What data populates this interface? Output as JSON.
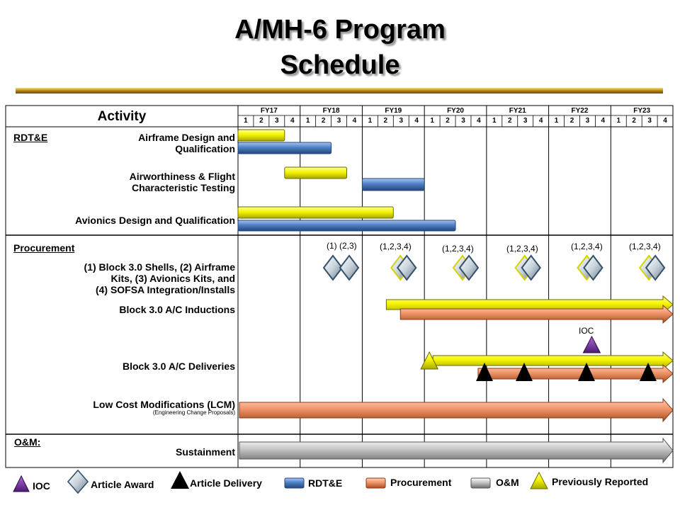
{
  "title": {
    "line1": "A/MH-6 Program",
    "line2": "Schedule"
  },
  "header": {
    "activity": "Activity",
    "fiscal_years": [
      "FY17",
      "FY18",
      "FY19",
      "FY20",
      "FY21",
      "FY22",
      "FY23"
    ],
    "quarters": [
      "1",
      "2",
      "3",
      "4"
    ]
  },
  "sections": {
    "rdte": "RDT&E",
    "procurement": "Procurement",
    "om": "O&M:"
  },
  "activities": {
    "airframe_l1": "Airframe Design and",
    "airframe_l2": "Qualification",
    "airworthiness_l1": "Airworthiness & Flight",
    "airworthiness_l2": "Characteristic Testing",
    "avionics": "Avionics Design and Qualification",
    "block_l1": "(1) Block 3.0 Shells, (2) Airframe",
    "block_l2": "Kits, (3) Avionics Kits, and",
    "block_l3": "(4) SOFSA Integration/Installs",
    "inductions": "Block 3.0 A/C Inductions",
    "deliveries": "Block 3.0 A/C Deliveries",
    "lcm": "Low Cost Modifications (LCM)",
    "lcm_sub": "(Engineering Change Proposals)",
    "sustainment": "Sustainment"
  },
  "award_labels": [
    "(1) (2,3)",
    "(1,2,3,4)",
    "(1,2,3,4)",
    "(1,2,3,4)",
    "(1,2,3,4)",
    "(1,2,3,4)"
  ],
  "ioc_label": "IOC",
  "legend": {
    "ioc": "IOC",
    "article_award": "Article Award",
    "article_delivery": "Article Delivery",
    "rdte": "RDT&E",
    "procurement": "Procurement",
    "om": "O&M",
    "previously_reported": "Previously Reported"
  },
  "colors": {
    "rdte": "#4f7fc4",
    "procurement": "#f0946a",
    "om": "#b9b9b9",
    "previously_reported": "#f5f500",
    "ioc": "#6a2a9a",
    "delivery": "#000000",
    "title_rule": "#c8961e"
  },
  "schedule": {
    "rdte_bars": [
      {
        "activity": "Airframe Design and Qualification",
        "type": "previously_reported",
        "start": "FY17 Q1",
        "end": "FY17 Q3"
      },
      {
        "activity": "Airframe Design and Qualification",
        "type": "rdte",
        "start": "FY17 Q1",
        "end": "FY18 Q2"
      },
      {
        "activity": "Airworthiness & Flight Characteristic Testing",
        "type": "previously_reported",
        "start": "FY17 Q4",
        "end": "FY18 Q3"
      },
      {
        "activity": "Airworthiness & Flight Characteristic Testing",
        "type": "rdte",
        "start": "FY19 Q1",
        "end": "FY19 Q4"
      },
      {
        "activity": "Avionics Design and Qualification",
        "type": "previously_reported",
        "start": "FY17 Q1",
        "end": "FY19 Q2"
      },
      {
        "activity": "Avionics Design and Qualification",
        "type": "rdte",
        "start": "FY17 Q1",
        "end": "FY20 Q2"
      }
    ],
    "procurement_bars": [
      {
        "activity": "Block 3.0 A/C Inductions",
        "type": "previously_reported",
        "start": "FY19 Q2",
        "end": "beyond FY23"
      },
      {
        "activity": "Block 3.0 A/C Inductions",
        "type": "procurement",
        "start": "FY19 Q3",
        "end": "beyond FY23"
      },
      {
        "activity": "Block 3.0 A/C Deliveries",
        "type": "previously_reported",
        "start": "FY20 Q1",
        "end": "beyond FY23"
      },
      {
        "activity": "Block 3.0 A/C Deliveries",
        "type": "procurement",
        "start": "FY20 Q4",
        "end": "beyond FY23"
      },
      {
        "activity": "Low Cost Modifications (LCM)",
        "type": "procurement",
        "start": "FY17 Q1",
        "end": "beyond FY23"
      }
    ],
    "om_bars": [
      {
        "activity": "Sustainment",
        "type": "om",
        "start": "FY17 Q1",
        "end": "beyond FY23"
      }
    ],
    "article_awards": [
      "FY18 Q3",
      "FY18 Q4",
      "FY19 Q3",
      "FY20 Q3",
      "FY21 Q3",
      "FY22 Q3",
      "FY23 Q3"
    ],
    "deliveries": [
      "FY20 Q4",
      "FY21 Q3",
      "FY22 Q3",
      "FY23 Q3"
    ],
    "ioc": "FY22 Q3"
  }
}
